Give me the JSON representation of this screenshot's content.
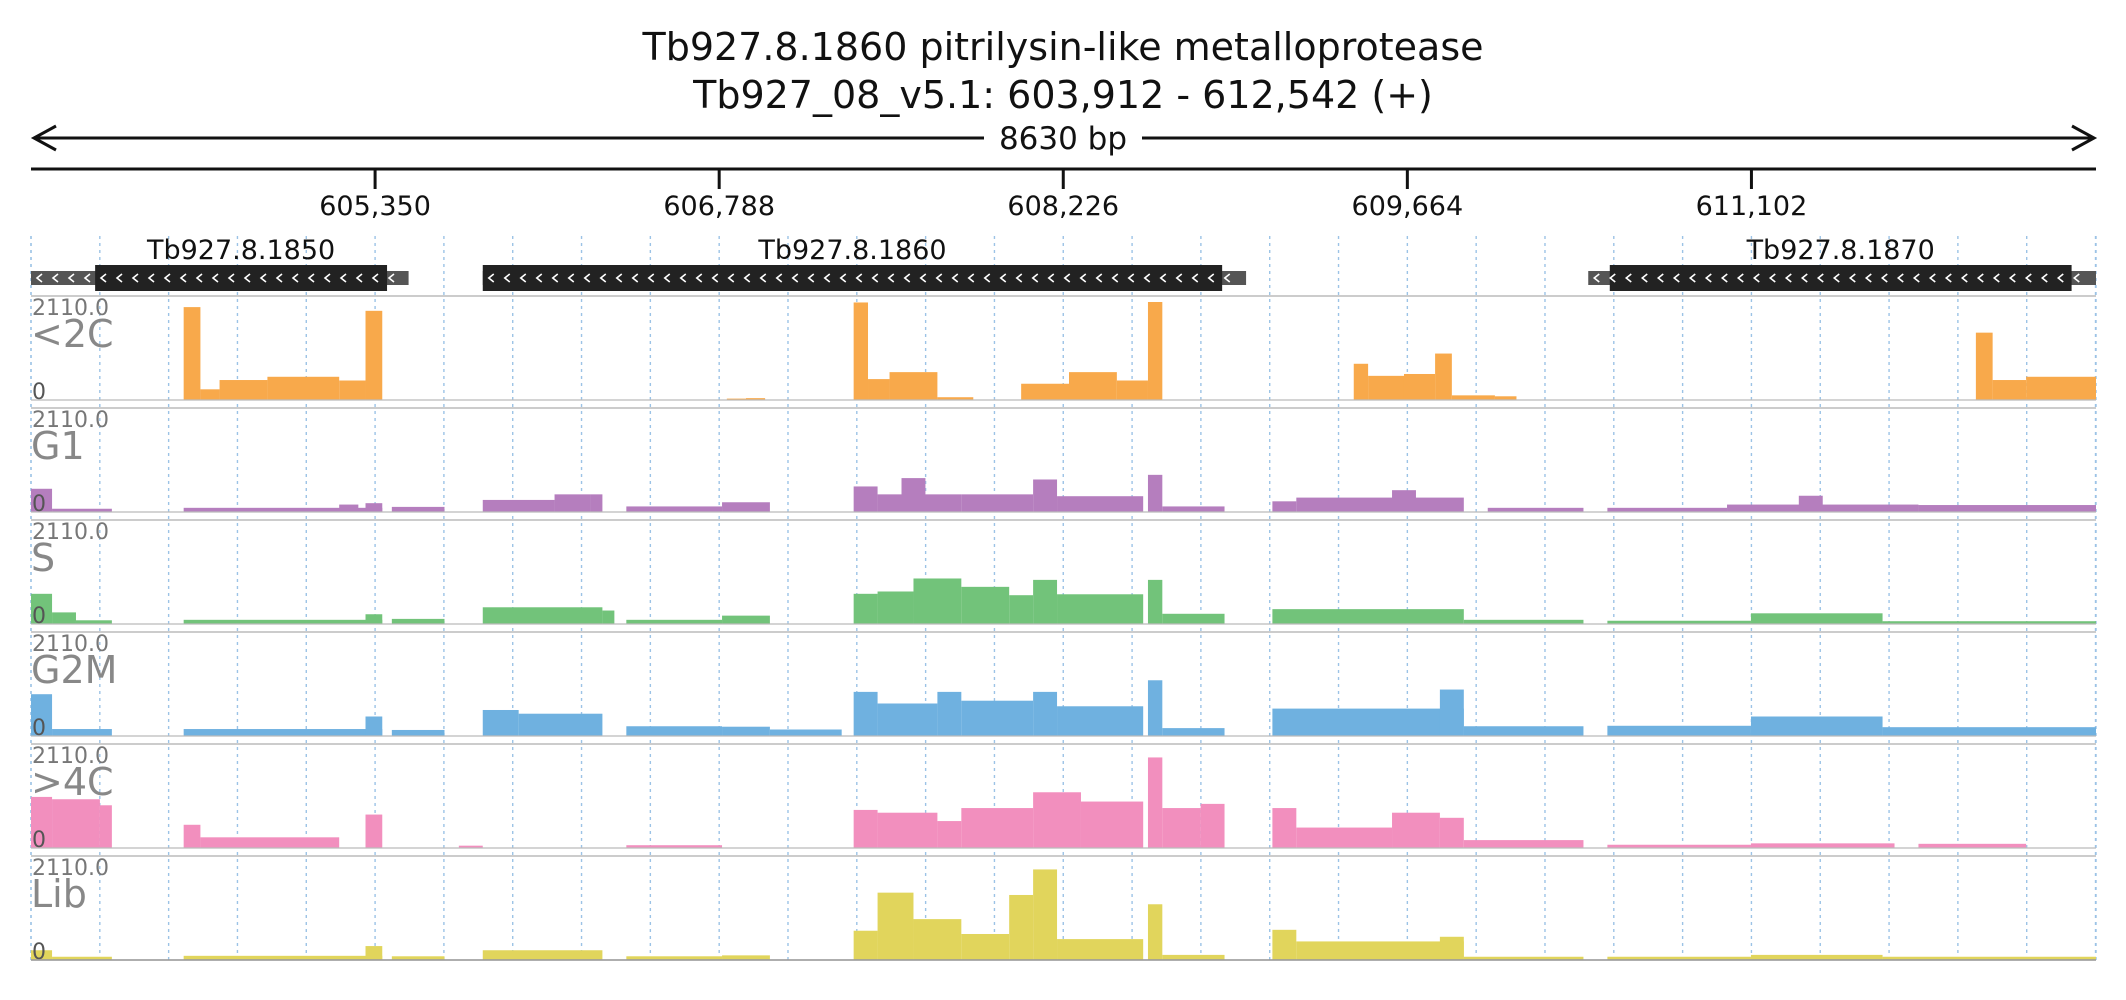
{
  "title": {
    "line1": "Tb927.8.1860  pitrilysin-like metalloprotease",
    "line2": "Tb927_08_v5.1: 603,912 - 612,542 (+)"
  },
  "span_label": "8630 bp",
  "axis": {
    "start": 603912,
    "end": 612542,
    "ticks": [
      {
        "pos": 605350,
        "label": "605,350"
      },
      {
        "pos": 606788,
        "label": "606,788"
      },
      {
        "pos": 608226,
        "label": "608,226"
      },
      {
        "pos": 609664,
        "label": "609,664"
      },
      {
        "pos": 611102,
        "label": "611,102"
      }
    ]
  },
  "genes": [
    {
      "name": "Tb927.8.1850",
      "utr_start": 603912,
      "cds_start": 604180,
      "cds_end": 605400,
      "utr_end": 605490,
      "strand": "-"
    },
    {
      "name": "Tb927.8.1860",
      "utr_start": 605800,
      "cds_start": 605800,
      "cds_end": 608890,
      "utr_end": 608990,
      "strand": "-"
    },
    {
      "name": "Tb927.8.1870",
      "utr_start": 610420,
      "cds_start": 610510,
      "cds_end": 612440,
      "utr_end": 612542,
      "strand": "-"
    }
  ],
  "chart_data": {
    "type": "area",
    "x_unit": "bp",
    "xlim": [
      603912,
      612542
    ],
    "ylim": [
      0,
      2110.0
    ],
    "tracks": [
      {
        "name": "<2C",
        "color": "#f8a94b",
        "segments": [
          [
            604550,
            604620,
            2000
          ],
          [
            604620,
            604700,
            230
          ],
          [
            604700,
            604900,
            430
          ],
          [
            604900,
            605200,
            500
          ],
          [
            605200,
            605310,
            420
          ],
          [
            605310,
            605380,
            1920
          ],
          [
            606820,
            606900,
            30
          ],
          [
            606900,
            606980,
            40
          ],
          [
            607350,
            607410,
            2100
          ],
          [
            607410,
            607500,
            450
          ],
          [
            607500,
            607700,
            600
          ],
          [
            607700,
            607850,
            60
          ],
          [
            608050,
            608250,
            350
          ],
          [
            608250,
            608450,
            600
          ],
          [
            608450,
            608580,
            420
          ],
          [
            608580,
            608640,
            2110
          ],
          [
            609440,
            609500,
            780
          ],
          [
            609500,
            609650,
            520
          ],
          [
            609650,
            609780,
            560
          ],
          [
            609780,
            609850,
            1000
          ],
          [
            609850,
            610030,
            100
          ],
          [
            610030,
            610120,
            80
          ],
          [
            612040,
            612110,
            1450
          ],
          [
            612110,
            612250,
            430
          ],
          [
            612250,
            612542,
            500
          ]
        ]
      },
      {
        "name": "G1",
        "color": "#b57ebe",
        "segments": [
          [
            603912,
            604000,
            500
          ],
          [
            604000,
            604250,
            70
          ],
          [
            604550,
            605380,
            90
          ],
          [
            605200,
            605280,
            160
          ],
          [
            605310,
            605380,
            190
          ],
          [
            605420,
            605640,
            110
          ],
          [
            605800,
            606100,
            260
          ],
          [
            606100,
            606250,
            380
          ],
          [
            606250,
            606300,
            380
          ],
          [
            606400,
            606800,
            120
          ],
          [
            606800,
            607000,
            210
          ],
          [
            607350,
            607450,
            550
          ],
          [
            607450,
            607800,
            380
          ],
          [
            607550,
            607650,
            730
          ],
          [
            607800,
            608100,
            380
          ],
          [
            608100,
            608200,
            700
          ],
          [
            608200,
            608560,
            340
          ],
          [
            608580,
            608640,
            800
          ],
          [
            608640,
            608900,
            120
          ],
          [
            609100,
            609200,
            230
          ],
          [
            609200,
            609900,
            310
          ],
          [
            609600,
            609700,
            470
          ],
          [
            610000,
            610400,
            90
          ],
          [
            610500,
            611000,
            90
          ],
          [
            611000,
            611800,
            160
          ],
          [
            611300,
            611400,
            350
          ],
          [
            611800,
            612542,
            150
          ]
        ]
      },
      {
        "name": "S",
        "color": "#72c37a",
        "segments": [
          [
            603912,
            604000,
            650
          ],
          [
            604000,
            604100,
            250
          ],
          [
            604100,
            604250,
            80
          ],
          [
            604550,
            605380,
            90
          ],
          [
            605310,
            605380,
            210
          ],
          [
            605420,
            605640,
            110
          ],
          [
            605800,
            606300,
            360
          ],
          [
            606300,
            606350,
            290
          ],
          [
            606400,
            606800,
            90
          ],
          [
            606800,
            607000,
            180
          ],
          [
            607350,
            607450,
            650
          ],
          [
            607450,
            607600,
            700
          ],
          [
            607600,
            607800,
            980
          ],
          [
            607800,
            608000,
            800
          ],
          [
            608000,
            608100,
            620
          ],
          [
            608100,
            608200,
            950
          ],
          [
            608200,
            608560,
            640
          ],
          [
            608580,
            608640,
            950
          ],
          [
            608640,
            608900,
            220
          ],
          [
            609100,
            609900,
            320
          ],
          [
            609900,
            610400,
            90
          ],
          [
            610500,
            611100,
            70
          ],
          [
            611100,
            611650,
            230
          ],
          [
            611650,
            612542,
            60
          ]
        ]
      },
      {
        "name": "G2M",
        "color": "#6fb1e0",
        "segments": [
          [
            603912,
            604000,
            900
          ],
          [
            604000,
            604250,
            150
          ],
          [
            604550,
            605380,
            150
          ],
          [
            605310,
            605380,
            420
          ],
          [
            605420,
            605640,
            130
          ],
          [
            605800,
            605950,
            560
          ],
          [
            605950,
            606300,
            480
          ],
          [
            606400,
            606800,
            210
          ],
          [
            606800,
            607000,
            200
          ],
          [
            607000,
            607300,
            140
          ],
          [
            607350,
            607450,
            950
          ],
          [
            607450,
            607700,
            700
          ],
          [
            607700,
            607800,
            950
          ],
          [
            607800,
            608100,
            760
          ],
          [
            608100,
            608200,
            950
          ],
          [
            608200,
            608560,
            640
          ],
          [
            608580,
            608640,
            1200
          ],
          [
            608640,
            608900,
            170
          ],
          [
            609100,
            609900,
            590
          ],
          [
            609800,
            609900,
            1000
          ],
          [
            609900,
            610400,
            210
          ],
          [
            610500,
            611100,
            220
          ],
          [
            611100,
            611650,
            420
          ],
          [
            611650,
            612542,
            190
          ]
        ]
      },
      {
        "name": ">4C",
        "color": "#f28fbe",
        "segments": [
          [
            603912,
            604000,
            1100
          ],
          [
            604000,
            604200,
            1050
          ],
          [
            604200,
            604250,
            920
          ],
          [
            604550,
            604620,
            500
          ],
          [
            604620,
            605200,
            230
          ],
          [
            605310,
            605380,
            720
          ],
          [
            605700,
            605800,
            50
          ],
          [
            606400,
            606800,
            60
          ],
          [
            607350,
            607450,
            820
          ],
          [
            607450,
            607700,
            760
          ],
          [
            607700,
            607800,
            580
          ],
          [
            607800,
            608100,
            860
          ],
          [
            608100,
            608300,
            1200
          ],
          [
            608300,
            608560,
            1000
          ],
          [
            608580,
            608640,
            1950
          ],
          [
            608640,
            608800,
            860
          ],
          [
            608800,
            608900,
            950
          ],
          [
            609100,
            609200,
            860
          ],
          [
            609200,
            609600,
            440
          ],
          [
            609600,
            609800,
            760
          ],
          [
            609800,
            609900,
            650
          ],
          [
            609900,
            610400,
            170
          ],
          [
            610500,
            611100,
            70
          ],
          [
            611100,
            611700,
            100
          ],
          [
            611800,
            612250,
            90
          ]
        ]
      },
      {
        "name": "Lib",
        "color": "#e1d55c",
        "segments": [
          [
            603912,
            604000,
            210
          ],
          [
            604000,
            604250,
            70
          ],
          [
            604550,
            605380,
            90
          ],
          [
            605310,
            605380,
            300
          ],
          [
            605420,
            605640,
            80
          ],
          [
            605800,
            606300,
            210
          ],
          [
            606400,
            606800,
            80
          ],
          [
            606800,
            607000,
            100
          ],
          [
            607350,
            607450,
            630
          ],
          [
            607450,
            607600,
            1450
          ],
          [
            607600,
            607800,
            880
          ],
          [
            607800,
            608000,
            560
          ],
          [
            608000,
            608100,
            1400
          ],
          [
            608100,
            608200,
            1950
          ],
          [
            608200,
            608560,
            450
          ],
          [
            608580,
            608640,
            1200
          ],
          [
            608640,
            608900,
            110
          ],
          [
            609100,
            609200,
            650
          ],
          [
            609200,
            609900,
            400
          ],
          [
            609800,
            609900,
            500
          ],
          [
            609900,
            610400,
            70
          ],
          [
            610500,
            611100,
            70
          ],
          [
            611100,
            611650,
            110
          ],
          [
            611650,
            612542,
            70
          ]
        ]
      }
    ],
    "ymax_label": "2110.0",
    "ymin_label": "0"
  }
}
